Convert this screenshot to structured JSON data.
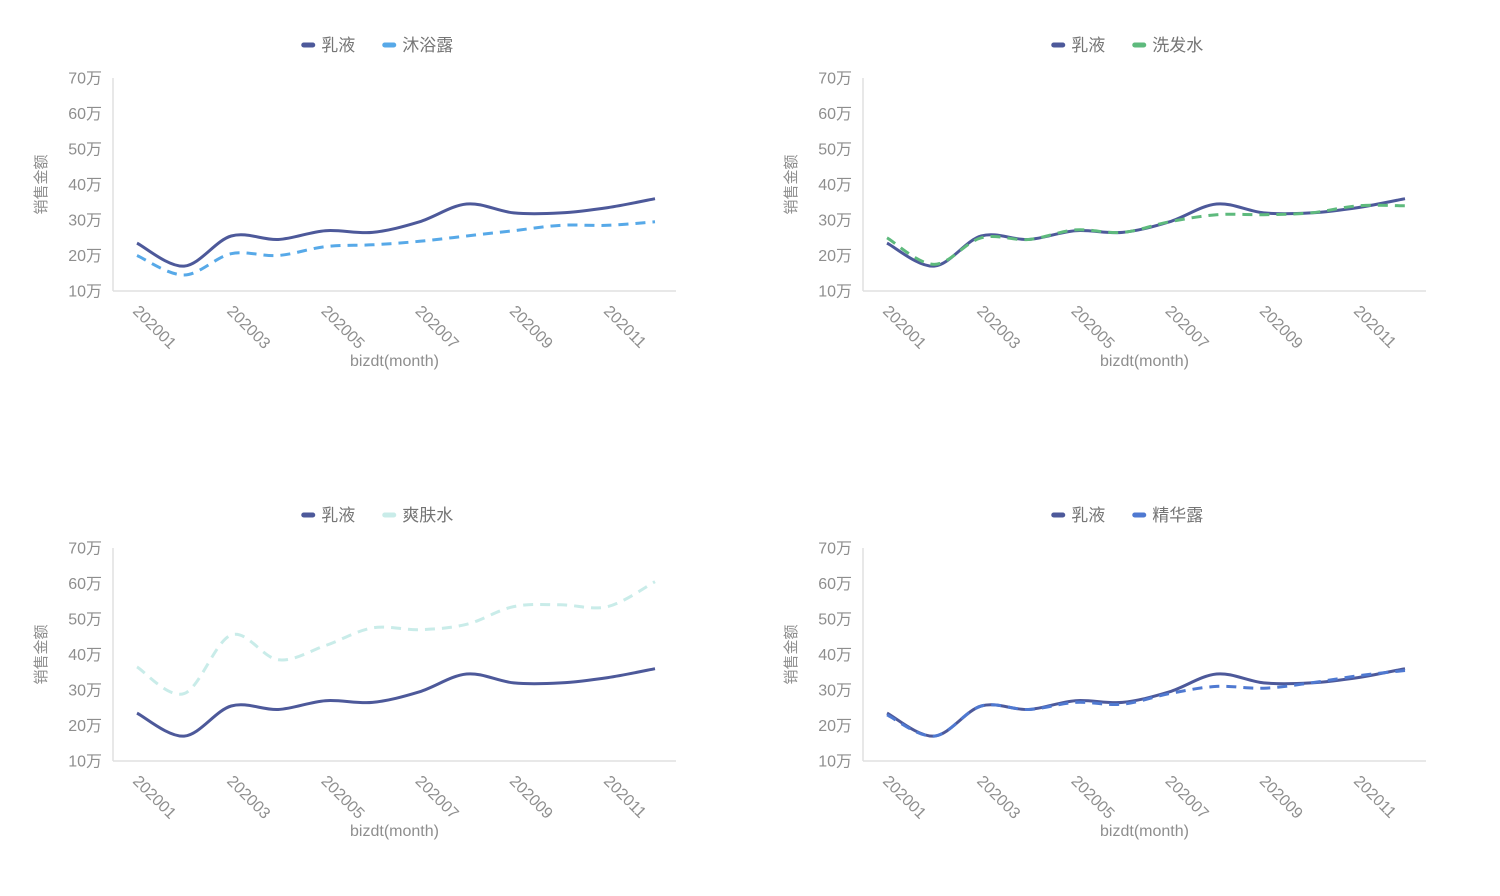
{
  "page": {
    "background": "#ffffff",
    "layout": "2x2 grid of smooth line charts"
  },
  "axis_common": {
    "ylabel": "销售金额",
    "xlabel": "bizdt(month)",
    "y_tick_labels": [
      "10万",
      "20万",
      "30万",
      "40万",
      "50万",
      "60万",
      "70万"
    ],
    "y_tick_values": [
      10,
      20,
      30,
      40,
      50,
      60,
      70
    ],
    "ylim": [
      10,
      70
    ],
    "x_visible_tick_labels": [
      "202001",
      "202003",
      "202005",
      "202007",
      "202009",
      "202011"
    ],
    "x_label_rotation_deg": 45,
    "grid_lines": "off",
    "axis_line_color": "#e0e0e0",
    "tick_text_color": "#8e8e8e",
    "legend_text_color": "#757575",
    "legend_position": "top-center"
  },
  "chart_data": [
    {
      "type": "line",
      "position": "top-left",
      "title": "",
      "xlabel": "bizdt(month)",
      "ylabel": "销售金额",
      "ylim": [
        10,
        70
      ],
      "x": [
        "202001",
        "202002",
        "202003",
        "202004",
        "202005",
        "202006",
        "202007",
        "202008",
        "202009",
        "202010",
        "202011",
        "202012"
      ],
      "legend": [
        "乳液",
        "沐浴露"
      ],
      "series": [
        {
          "name": "乳液",
          "color": "#4d599a",
          "line_style": "solid",
          "values": [
            23.5,
            17,
            25.5,
            24.5,
            27,
            26.5,
            29.5,
            34.5,
            32,
            32,
            33.5,
            36
          ]
        },
        {
          "name": "沐浴露",
          "color": "#57a9e8",
          "line_style": "dashed",
          "values": [
            20,
            14.5,
            20.5,
            20,
            22.5,
            23,
            24,
            25.5,
            27,
            28.5,
            28.5,
            29.5
          ]
        }
      ]
    },
    {
      "type": "line",
      "position": "top-right",
      "title": "",
      "xlabel": "bizdt(month)",
      "ylabel": "销售金额",
      "ylim": [
        10,
        70
      ],
      "x": [
        "202001",
        "202002",
        "202003",
        "202004",
        "202005",
        "202006",
        "202007",
        "202008",
        "202009",
        "202010",
        "202011",
        "202012"
      ],
      "legend": [
        "乳液",
        "洗发水"
      ],
      "series": [
        {
          "name": "乳液",
          "color": "#4d599a",
          "line_style": "solid",
          "values": [
            23.5,
            17,
            25.5,
            24.5,
            27,
            26.5,
            29.5,
            34.5,
            32,
            32,
            33.5,
            36
          ]
        },
        {
          "name": "洗发水",
          "color": "#5eba7d",
          "line_style": "dashed",
          "values": [
            25,
            17.5,
            25,
            24.5,
            27.2,
            26.5,
            29.5,
            31.5,
            31.5,
            32,
            34,
            34
          ]
        }
      ]
    },
    {
      "type": "line",
      "position": "bottom-left",
      "title": "",
      "xlabel": "bizdt(month)",
      "ylabel": "销售金额",
      "ylim": [
        10,
        70
      ],
      "x": [
        "202001",
        "202002",
        "202003",
        "202004",
        "202005",
        "202006",
        "202007",
        "202008",
        "202009",
        "202010",
        "202011",
        "202012"
      ],
      "legend": [
        "乳液",
        "爽肤水"
      ],
      "series": [
        {
          "name": "乳液",
          "color": "#4d599a",
          "line_style": "solid",
          "values": [
            23.5,
            17,
            25.5,
            24.5,
            27,
            26.5,
            29.5,
            34.5,
            32,
            32,
            33.5,
            36
          ]
        },
        {
          "name": "爽肤水",
          "color": "#c9ece9",
          "line_style": "dashed",
          "values": [
            36.5,
            29,
            45.5,
            38.5,
            42.5,
            47.5,
            47,
            48.5,
            53.5,
            54,
            53.5,
            60.5
          ]
        }
      ]
    },
    {
      "type": "line",
      "position": "bottom-right",
      "title": "",
      "xlabel": "bizdt(month)",
      "ylabel": "销售金额",
      "ylim": [
        10,
        70
      ],
      "x": [
        "202001",
        "202002",
        "202003",
        "202004",
        "202005",
        "202006",
        "202007",
        "202008",
        "202009",
        "202010",
        "202011",
        "202012"
      ],
      "legend": [
        "乳液",
        "精华露"
      ],
      "series": [
        {
          "name": "乳液",
          "color": "#4d599a",
          "line_style": "solid",
          "values": [
            23.5,
            17,
            25.5,
            24.5,
            27,
            26.5,
            29.5,
            34.5,
            32,
            32,
            33.5,
            36
          ]
        },
        {
          "name": "精华露",
          "color": "#4f79d1",
          "line_style": "dashed",
          "values": [
            23,
            17,
            25.5,
            24.5,
            26.5,
            26,
            29,
            31,
            30.5,
            32,
            34,
            35.5
          ]
        }
      ]
    }
  ]
}
